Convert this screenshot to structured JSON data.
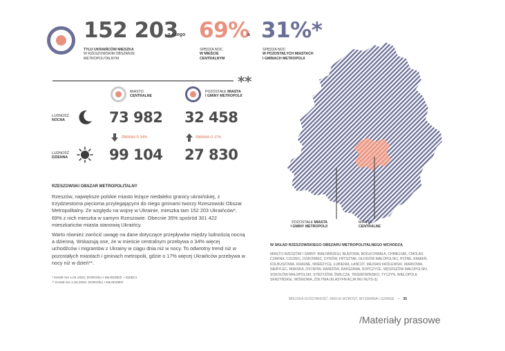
{
  "stats": {
    "total": "152 203",
    "total_caption_1": "TYLU UKRAIŃCÓW MIESZKA",
    "total_caption_2": "W RZESZOWSKIM OBSZARZE",
    "total_caption_3": "METROPOLITALNYM",
    "connector_1": "z czego",
    "central_pct": "69%",
    "central_caption_1": "SPĘDZA NOC",
    "central_caption_2": "W MIEŚCIE",
    "central_caption_3": "CENTRALNYM",
    "connector_2": "a",
    "others_pct": "31%*",
    "others_caption_1": "SPĘDZA NOC",
    "others_caption_2": "W POZOSTAŁYCH MIASTACH",
    "others_caption_3": "I GMINACH METROPOLII",
    "double_star": "**"
  },
  "legend": {
    "central_line1": "MIASTO",
    "central_line2": "CENTRALNE",
    "others_line1_thin": "POZOSTAŁE",
    "others_line1_bold": "MIASTA",
    "others_line2": "I GMINY METROPOLII"
  },
  "population": {
    "night_label_1": "LUDNOŚĆ",
    "night_label_2": "NOCNA",
    "day_label_1": "LUDNOŚĆ",
    "day_label_2": "DZIENNA",
    "central_night": "73 982",
    "others_night": "32 458",
    "central_change": "ZMIANA O 34%",
    "others_change": "ZMIANA O 17%",
    "central_day": "99 104",
    "others_day": "27 830"
  },
  "article": {
    "heading": "RZESZOWSKI OBSZAR METROPOLITALNY",
    "paragraph_1": "Rzeszów, największe polskie miasto leżące niedaleko granicy ukraińskiej, z trzydziestoma pięcioma przylegającymi do niego gminami tworzy Rzeszowski Obszar Metropolitalny. Ze względu na wojnę w Ukrainie, mieszka tam 152 203 Ukraińców*, 69% z nich mieszka w samym Rzeszowie. Obecnie 35% spośród 301 422 mieszkańców miasta stanowią Ukraińcy.",
    "paragraph_2": "Warto również zwrócić uwagę na dane dotyczące przepływów między ludnością nocną a dzienną. Wskazują one, że w mieście centralnym przebywa o 34% więcej uchodźców i migrantów z Ukrainy w ciągu dnia niż w nocy. To odwrotny trend niż w pozostałych miastach i gminach metropolii, gdzie o 17% więcej Ukraińców przebywa w nocy niż w dzień**.",
    "footnote_1": "* DANE NA 1.04.2022; DOROŚLI I MŁODZIEŻ + DZIECI",
    "footnote_2": "** DANE NA 1.04.2022; DOROŚLI I MŁODZIEŻ"
  },
  "map": {
    "label_others_1_thin": "POZOSTAŁE",
    "label_others_1_bold": "MIASTA",
    "label_others_2": "I GMINY METROPOLII",
    "label_central_1": "MIASTO",
    "label_central_2": "CENTRALNE"
  },
  "composition": {
    "heading": "W SKŁAD RZESZOWSKIEGO OBSZARU METROPOLITALNEGO WCHODZĄ",
    "text": "MIASTO RZESZÓW I GMINY: BIAŁOBRZEGI, BŁAŻOWA, BOGUCHWAŁA, CHMIELNIK, CMOLAS, CZARNA, CZUDEC, DZIKOWIEC, DYNÓW, FRYSZTAK, GŁOGÓW MAŁOPOLSKI, HYŻNE, KAMIEŃ, KOLBUSZOWA, KRASNE, IWIERZYCE, ŁUBIENIA, ŁAŃCUT, MAJDAN KRÓLEWSKI, MARKOWA, NIEBYLEC, NIWISKA, OSTRÓW, RANIŻÓW, RAKSZAWA, ROPCZYCE, SĘDZISZÓW MAŁOPOLSKI, SOKOŁÓW MAŁOPOLSKI, STRZYŻÓW, ŚWILCZA, TRZEBOWNISKO, TYCZYN, WIELOPOLE SKRZYŃSKIE, WIŚNIOWA, ŻOŁYNIA (KLASYFIKACJA WG NUTS-3)."
  },
  "footer": {
    "text": "MIEJSKA GOŚCINNOŚĆ: WIELKI WZROST, WYZWANIA I SZANSE",
    "separator": "•",
    "page": "35"
  },
  "credit": "/Materiały prasowe",
  "colors": {
    "central": "#e8917f",
    "others": "#6b6f96",
    "dark": "#3a3a3a",
    "central_fill": "#f6c7bc"
  },
  "icons": [
    "target-icon",
    "target-icon-small",
    "moon-icon",
    "sun-icon",
    "arrow-down-icon",
    "arrow-up-icon"
  ]
}
